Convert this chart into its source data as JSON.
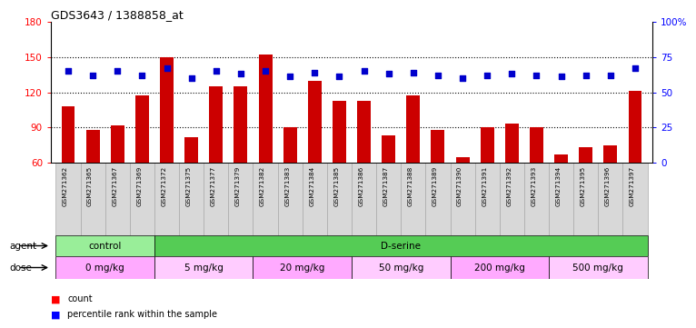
{
  "title": "GDS3643 / 1388858_at",
  "samples": [
    "GSM271362",
    "GSM271365",
    "GSM271367",
    "GSM271369",
    "GSM271372",
    "GSM271375",
    "GSM271377",
    "GSM271379",
    "GSM271382",
    "GSM271383",
    "GSM271384",
    "GSM271385",
    "GSM271386",
    "GSM271387",
    "GSM271388",
    "GSM271389",
    "GSM271390",
    "GSM271391",
    "GSM271392",
    "GSM271393",
    "GSM271394",
    "GSM271395",
    "GSM271396",
    "GSM271397"
  ],
  "counts": [
    108,
    88,
    92,
    117,
    150,
    82,
    125,
    125,
    152,
    90,
    130,
    113,
    113,
    83,
    117,
    88,
    65,
    90,
    93,
    90,
    67,
    73,
    75,
    121
  ],
  "percentiles": [
    65,
    62,
    65,
    62,
    67,
    60,
    65,
    63,
    65,
    61,
    64,
    61,
    65,
    63,
    64,
    62,
    60,
    62,
    63,
    62,
    61,
    62,
    62,
    67
  ],
  "bar_color": "#cc0000",
  "square_color": "#0000cc",
  "ylim_left": [
    60,
    180
  ],
  "ylim_right": [
    0,
    100
  ],
  "yticks_left": [
    60,
    90,
    120,
    150,
    180
  ],
  "yticks_right": [
    0,
    25,
    50,
    75,
    100
  ],
  "hlines": [
    90,
    120,
    150
  ],
  "agent_groups": [
    {
      "label": "control",
      "start": 0,
      "end": 4,
      "color": "#99ee99"
    },
    {
      "label": "D-serine",
      "start": 4,
      "end": 24,
      "color": "#55cc55"
    }
  ],
  "dose_groups": [
    {
      "label": "0 mg/kg",
      "start": 0,
      "end": 4,
      "color": "#ffaaff"
    },
    {
      "label": "5 mg/kg",
      "start": 4,
      "end": 8,
      "color": "#ffccff"
    },
    {
      "label": "20 mg/kg",
      "start": 8,
      "end": 12,
      "color": "#ffaaff"
    },
    {
      "label": "50 mg/kg",
      "start": 12,
      "end": 16,
      "color": "#ffccff"
    },
    {
      "label": "200 mg/kg",
      "start": 16,
      "end": 20,
      "color": "#ffaaff"
    },
    {
      "label": "500 mg/kg",
      "start": 20,
      "end": 24,
      "color": "#ffccff"
    }
  ]
}
